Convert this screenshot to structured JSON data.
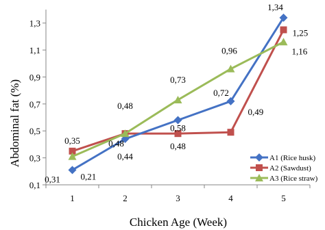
{
  "chart_data": {
    "type": "line",
    "xlabel": "Chicken Age (Week)",
    "ylabel": "Abdominal fat (%)",
    "categories": [
      "1",
      "2",
      "3",
      "4",
      "5"
    ],
    "ylim": [
      0.1,
      1.4
    ],
    "yticks": [
      "0,1",
      "0,3",
      "0,5",
      "0,7",
      "0,9",
      "1,1",
      "1,3"
    ],
    "grid": false,
    "legend_position": "right",
    "series": [
      {
        "name": "A1 (Rice husk)",
        "color": "#4472C4",
        "marker": "diamond",
        "values": [
          0.21,
          0.44,
          0.58,
          0.72,
          1.34
        ],
        "labels": [
          "0,21",
          "0,44",
          "0,58",
          "0,72",
          "1,34"
        ]
      },
      {
        "name": "A2 (Sawdust)",
        "color": "#C0504D",
        "marker": "square",
        "values": [
          0.35,
          0.48,
          0.48,
          0.49,
          1.25
        ],
        "labels": [
          "0,35",
          "0,48",
          "0,48",
          "0,49",
          "1,25"
        ]
      },
      {
        "name": "A3 (Rice straw)",
        "color": "#9BBB59",
        "marker": "triangle",
        "values": [
          0.31,
          0.48,
          0.73,
          0.96,
          1.16
        ],
        "labels": [
          "0,31",
          "0,48",
          "0,73",
          "0,96",
          "1,16"
        ]
      }
    ]
  }
}
